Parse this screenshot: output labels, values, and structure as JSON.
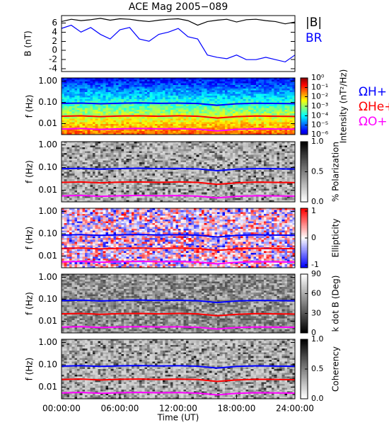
{
  "chart_data": [
    {
      "type": "line",
      "title": "ACE Mag 2005−089",
      "ylabel": "B (nT)",
      "xlim": [
        0,
        24
      ],
      "ylim": [
        -4.6,
        7.6
      ],
      "yticks": [
        -4,
        -2,
        0,
        2,
        4,
        6
      ],
      "x": [
        0,
        1,
        2,
        3,
        4,
        5,
        6,
        7,
        8,
        9,
        10,
        11,
        12,
        13,
        14,
        15,
        16,
        17,
        18,
        19,
        20,
        21,
        22,
        23,
        24
      ],
      "series": [
        {
          "name": "|B|",
          "color": "#000000",
          "values": [
            6.3,
            6.8,
            6.5,
            6.7,
            7.0,
            6.6,
            6.9,
            6.8,
            6.5,
            6.3,
            6.6,
            6.8,
            6.9,
            6.5,
            5.5,
            6.3,
            6.6,
            6.8,
            6.2,
            6.7,
            6.8,
            6.5,
            6.3,
            5.8,
            6.2
          ]
        },
        {
          "name": "BR",
          "color": "#0000ff",
          "values": [
            4.8,
            5.5,
            4.0,
            5.0,
            3.5,
            2.5,
            4.5,
            5.0,
            2.5,
            2.0,
            3.5,
            4.0,
            4.8,
            3.0,
            2.5,
            -1.0,
            -1.5,
            -1.8,
            -1.0,
            -2.0,
            -2.0,
            -1.5,
            -2.0,
            -2.5,
            -1.0
          ]
        }
      ]
    },
    {
      "type": "spectrogram",
      "map": "jet",
      "ylabel": "f (Hz)",
      "log_y": true,
      "xlim": [
        0,
        24
      ],
      "ylim": [
        0.003,
        1.4
      ],
      "yticks": [
        {
          "value": 1,
          "label": "1.00"
        },
        {
          "value": 0.1,
          "label": "0.10"
        },
        {
          "value": 0.01,
          "label": "0.01"
        }
      ],
      "colorbar_label": "Intensity (nT²/Hz)",
      "clim": [
        1e-06,
        1
      ],
      "log_c": true,
      "cticks": [
        {
          "value": 1,
          "label": "10⁰"
        },
        {
          "value": 0.1,
          "label": "10⁻¹"
        },
        {
          "value": 0.01,
          "label": "10⁻²"
        },
        {
          "value": 0.001,
          "label": "10⁻³"
        },
        {
          "value": 0.0001,
          "label": "10⁻⁴"
        },
        {
          "value": 1e-05,
          "label": "10⁻⁵"
        },
        {
          "value": 1e-06,
          "label": "10⁻⁶"
        }
      ],
      "x": [
        0,
        2,
        4,
        6,
        8,
        10,
        12,
        14,
        16,
        18,
        20,
        22,
        24
      ],
      "series": [
        {
          "name": "ΩH+",
          "color": "#0000ff",
          "values": [
            0.088,
            0.092,
            0.085,
            0.09,
            0.093,
            0.089,
            0.091,
            0.087,
            0.072,
            0.085,
            0.09,
            0.088,
            0.086
          ]
        },
        {
          "name": "ΩHe+",
          "color": "#ff0000",
          "values": [
            0.022,
            0.023,
            0.021,
            0.0225,
            0.023,
            0.022,
            0.023,
            0.022,
            0.018,
            0.021,
            0.0225,
            0.022,
            0.0215
          ]
        },
        {
          "name": "ΩO+",
          "color": "#ff00ff",
          "values": [
            0.0055,
            0.0058,
            0.0053,
            0.0056,
            0.0058,
            0.0056,
            0.0057,
            0.0054,
            0.0045,
            0.0053,
            0.0056,
            0.0055,
            0.0054
          ]
        }
      ]
    },
    {
      "type": "spectrogram",
      "map": "gray",
      "ylabel": "f (Hz)",
      "log_y": true,
      "xlim": [
        0,
        24
      ],
      "ylim": [
        0.003,
        1.4
      ],
      "yticks": [
        {
          "value": 1,
          "label": "1.00"
        },
        {
          "value": 0.1,
          "label": "0.10"
        },
        {
          "value": 0.01,
          "label": "0.01"
        }
      ],
      "colorbar_label": "% Polarization",
      "clim": [
        0,
        1
      ],
      "cticks": [
        {
          "value": 1,
          "label": "1.0"
        },
        {
          "value": 0.5,
          "label": "0.5"
        },
        {
          "value": 0,
          "label": "0.0"
        }
      ],
      "x": [
        0,
        2,
        4,
        6,
        8,
        10,
        12,
        14,
        16,
        18,
        20,
        22,
        24
      ],
      "series": [
        {
          "color": "#0000ff",
          "values": [
            0.088,
            0.092,
            0.085,
            0.09,
            0.093,
            0.089,
            0.091,
            0.087,
            0.072,
            0.085,
            0.09,
            0.088,
            0.086
          ]
        },
        {
          "color": "#ff0000",
          "values": [
            0.022,
            0.023,
            0.021,
            0.0225,
            0.023,
            0.022,
            0.023,
            0.022,
            0.018,
            0.021,
            0.0225,
            0.022,
            0.0215
          ]
        },
        {
          "color": "#ff00ff",
          "values": [
            0.0055,
            0.0058,
            0.0053,
            0.0056,
            0.0058,
            0.0056,
            0.0057,
            0.0054,
            0.0045,
            0.0053,
            0.0056,
            0.0055,
            0.0054
          ]
        }
      ]
    },
    {
      "type": "spectrogram",
      "map": "bwr",
      "ylabel": "f (Hz)",
      "log_y": true,
      "xlim": [
        0,
        24
      ],
      "ylim": [
        0.003,
        1.4
      ],
      "yticks": [
        {
          "value": 1,
          "label": "1.00"
        },
        {
          "value": 0.1,
          "label": "0.10"
        },
        {
          "value": 0.01,
          "label": "0.01"
        }
      ],
      "colorbar_label": "Ellipticity",
      "clim": [
        -1.1,
        1.1
      ],
      "cticks": [
        1,
        0,
        -1
      ],
      "x": [
        0,
        2,
        4,
        6,
        8,
        10,
        12,
        14,
        16,
        18,
        20,
        22,
        24
      ],
      "series": [
        {
          "color": "#0000ff",
          "values": [
            0.088,
            0.092,
            0.085,
            0.09,
            0.093,
            0.089,
            0.091,
            0.087,
            0.072,
            0.085,
            0.09,
            0.088,
            0.086
          ]
        },
        {
          "color": "#ff0000",
          "values": [
            0.022,
            0.023,
            0.021,
            0.0225,
            0.023,
            0.022,
            0.023,
            0.022,
            0.018,
            0.021,
            0.0225,
            0.022,
            0.0215
          ]
        },
        {
          "color": "#ff00ff",
          "values": [
            0.0055,
            0.0058,
            0.0053,
            0.0056,
            0.0058,
            0.0056,
            0.0057,
            0.0054,
            0.0045,
            0.0053,
            0.0056,
            0.0055,
            0.0054
          ]
        }
      ]
    },
    {
      "type": "spectrogram",
      "map": "gray_r",
      "ylabel": "f (Hz)",
      "log_y": true,
      "xlim": [
        0,
        24
      ],
      "ylim": [
        0.003,
        1.4
      ],
      "yticks": [
        {
          "value": 1,
          "label": "1.00"
        },
        {
          "value": 0.1,
          "label": "0.10"
        },
        {
          "value": 0.01,
          "label": "0.01"
        }
      ],
      "colorbar_label": "k dot B (Deg)",
      "clim": [
        0,
        90
      ],
      "cticks": [
        90,
        60,
        30,
        0
      ],
      "x": [
        0,
        2,
        4,
        6,
        8,
        10,
        12,
        14,
        16,
        18,
        20,
        22,
        24
      ],
      "series": [
        {
          "color": "#0000ff",
          "values": [
            0.088,
            0.092,
            0.085,
            0.09,
            0.093,
            0.089,
            0.091,
            0.087,
            0.072,
            0.085,
            0.09,
            0.088,
            0.086
          ]
        },
        {
          "color": "#ff0000",
          "values": [
            0.022,
            0.023,
            0.021,
            0.0225,
            0.023,
            0.022,
            0.023,
            0.022,
            0.018,
            0.021,
            0.0225,
            0.022,
            0.0215
          ]
        },
        {
          "color": "#ff00ff",
          "values": [
            0.0055,
            0.0058,
            0.0053,
            0.0056,
            0.0058,
            0.0056,
            0.0057,
            0.0054,
            0.0045,
            0.0053,
            0.0056,
            0.0055,
            0.0054
          ]
        }
      ]
    },
    {
      "type": "spectrogram",
      "map": "gray",
      "ylabel": "f (Hz)",
      "log_y": true,
      "xlim": [
        0,
        24
      ],
      "ylim": [
        0.003,
        1.4
      ],
      "yticks": [
        {
          "value": 1,
          "label": "1.00"
        },
        {
          "value": 0.1,
          "label": "0.10"
        },
        {
          "value": 0.01,
          "label": "0.01"
        }
      ],
      "colorbar_label": "Coherency",
      "clim": [
        0,
        1
      ],
      "cticks": [
        {
          "value": 1,
          "label": "1.0"
        },
        {
          "value": 0.5,
          "label": "0.5"
        },
        {
          "value": 0,
          "label": "0.0"
        }
      ],
      "xlabel": "Time (UT)",
      "xticks": [
        {
          "value": 0,
          "label": "00:00:00"
        },
        {
          "value": 6,
          "label": "06:00:00"
        },
        {
          "value": 12,
          "label": "12:00:00"
        },
        {
          "value": 18,
          "label": "18:00:00"
        },
        {
          "value": 24,
          "label": "24:00:00"
        }
      ],
      "x": [
        0,
        2,
        4,
        6,
        8,
        10,
        12,
        14,
        16,
        18,
        20,
        22,
        24
      ],
      "series": [
        {
          "color": "#0000ff",
          "values": [
            0.088,
            0.092,
            0.085,
            0.09,
            0.093,
            0.089,
            0.091,
            0.087,
            0.072,
            0.085,
            0.09,
            0.088,
            0.086
          ]
        },
        {
          "color": "#ff0000",
          "values": [
            0.022,
            0.023,
            0.021,
            0.0225,
            0.023,
            0.022,
            0.023,
            0.022,
            0.018,
            0.021,
            0.0225,
            0.022,
            0.0215
          ]
        },
        {
          "color": "#ff00ff",
          "values": [
            0.0055,
            0.0058,
            0.0053,
            0.0056,
            0.0058,
            0.0056,
            0.0057,
            0.0054,
            0.0045,
            0.0053,
            0.0056,
            0.0055,
            0.0054
          ]
        }
      ]
    }
  ]
}
